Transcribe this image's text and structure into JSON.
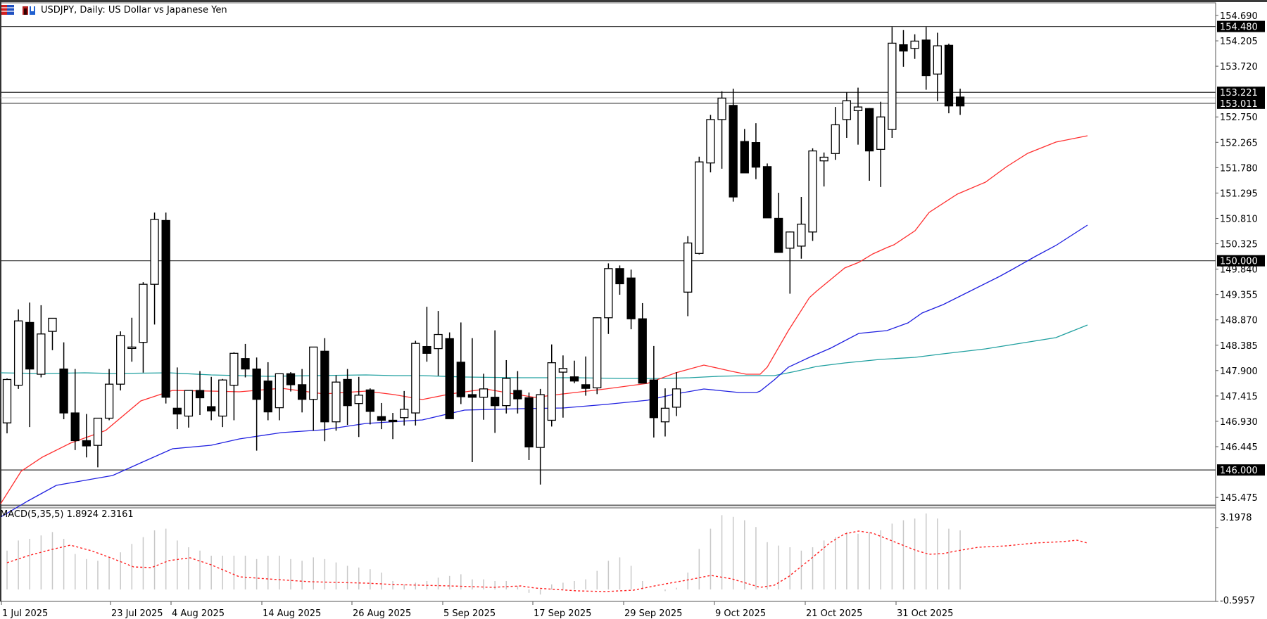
{
  "window": {
    "title": "USDJPY, Daily:  US Dollar vs Japanese Yen"
  },
  "chart_data": [
    {
      "type": "candlestick",
      "title": "USDJPY, Daily:  US Dollar vs Japanese Yen",
      "symbol": "USDJPY",
      "timeframe": "Daily",
      "y_axis_ticks": [
        154.69,
        154.205,
        153.72,
        152.75,
        152.265,
        151.78,
        151.295,
        150.81,
        150.325,
        149.84,
        149.355,
        148.87,
        148.385,
        147.9,
        147.415,
        146.93,
        146.445,
        145.475
      ],
      "ylim": [
        145.2,
        154.95
      ],
      "x_axis_labels": [
        "1 Jul 2025",
        "23 Jul 2025",
        "4 Aug 2025",
        "14 Aug 2025",
        "26 Aug 2025",
        "5 Sep 2025",
        "17 Sep 2025",
        "29 Sep 2025",
        "9 Oct 2025",
        "21 Oct 2025",
        "31 Oct 2025"
      ],
      "horizontal_levels": [
        {
          "price": 154.48,
          "label": "154.480"
        },
        {
          "price": 153.221,
          "label": "153.221"
        },
        {
          "price": 153.011,
          "label": "153.011"
        },
        {
          "price": 150.0,
          "label": "150.000"
        },
        {
          "price": 146.0,
          "label": "146.000"
        }
      ],
      "candles": [
        {
          "o": 146.9,
          "h": 147.75,
          "l": 146.7,
          "c": 147.73
        },
        {
          "o": 147.62,
          "h": 149.07,
          "l": 147.55,
          "c": 148.85
        },
        {
          "o": 148.82,
          "h": 149.2,
          "l": 146.82,
          "c": 147.93
        },
        {
          "o": 147.83,
          "h": 149.15,
          "l": 147.77,
          "c": 148.6
        },
        {
          "o": 148.65,
          "h": 148.86,
          "l": 148.29,
          "c": 148.9
        },
        {
          "o": 147.93,
          "h": 148.44,
          "l": 146.97,
          "c": 147.09
        },
        {
          "o": 147.09,
          "h": 147.93,
          "l": 146.38,
          "c": 146.56
        },
        {
          "o": 146.56,
          "h": 147.07,
          "l": 146.24,
          "c": 146.46
        },
        {
          "o": 146.47,
          "h": 146.99,
          "l": 146.05,
          "c": 146.99
        },
        {
          "o": 146.99,
          "h": 147.93,
          "l": 146.95,
          "c": 147.64
        },
        {
          "o": 147.64,
          "h": 148.65,
          "l": 147.52,
          "c": 148.57
        },
        {
          "o": 148.35,
          "h": 148.91,
          "l": 148.07,
          "c": 148.35
        },
        {
          "o": 148.44,
          "h": 149.59,
          "l": 147.86,
          "c": 149.55
        },
        {
          "o": 149.55,
          "h": 150.92,
          "l": 148.78,
          "c": 150.79
        },
        {
          "o": 150.77,
          "h": 150.92,
          "l": 147.27,
          "c": 147.39
        },
        {
          "o": 147.18,
          "h": 147.96,
          "l": 146.78,
          "c": 147.07
        },
        {
          "o": 147.03,
          "h": 147.52,
          "l": 146.81,
          "c": 147.52
        },
        {
          "o": 147.52,
          "h": 147.89,
          "l": 147.05,
          "c": 147.38
        },
        {
          "o": 147.21,
          "h": 147.78,
          "l": 146.95,
          "c": 147.13
        },
        {
          "o": 147.03,
          "h": 147.74,
          "l": 146.82,
          "c": 147.72
        },
        {
          "o": 147.62,
          "h": 148.25,
          "l": 146.95,
          "c": 148.23
        },
        {
          "o": 148.13,
          "h": 148.41,
          "l": 147.77,
          "c": 147.93
        },
        {
          "o": 147.93,
          "h": 148.15,
          "l": 146.37,
          "c": 147.35
        },
        {
          "o": 147.7,
          "h": 148.06,
          "l": 146.95,
          "c": 147.11
        },
        {
          "o": 147.19,
          "h": 147.84,
          "l": 146.95,
          "c": 147.84
        },
        {
          "o": 147.84,
          "h": 147.87,
          "l": 147.5,
          "c": 147.63
        },
        {
          "o": 147.63,
          "h": 147.93,
          "l": 147.1,
          "c": 147.35
        },
        {
          "o": 147.35,
          "h": 148.35,
          "l": 146.75,
          "c": 148.35
        },
        {
          "o": 148.27,
          "h": 148.52,
          "l": 146.55,
          "c": 146.92
        },
        {
          "o": 146.92,
          "h": 147.81,
          "l": 146.75,
          "c": 147.68
        },
        {
          "o": 147.73,
          "h": 147.93,
          "l": 146.86,
          "c": 147.23
        },
        {
          "o": 147.27,
          "h": 147.78,
          "l": 146.63,
          "c": 147.43
        },
        {
          "o": 147.53,
          "h": 147.56,
          "l": 146.87,
          "c": 147.12
        },
        {
          "o": 147.02,
          "h": 147.28,
          "l": 146.78,
          "c": 146.95
        },
        {
          "o": 146.95,
          "h": 147.09,
          "l": 146.59,
          "c": 146.93
        },
        {
          "o": 147.0,
          "h": 147.51,
          "l": 146.85,
          "c": 147.16
        },
        {
          "o": 147.09,
          "h": 148.47,
          "l": 146.85,
          "c": 148.42
        },
        {
          "o": 148.36,
          "h": 149.12,
          "l": 148.07,
          "c": 148.23
        },
        {
          "o": 148.32,
          "h": 149.04,
          "l": 147.8,
          "c": 148.59
        },
        {
          "o": 148.51,
          "h": 148.63,
          "l": 146.98,
          "c": 146.98
        },
        {
          "o": 148.06,
          "h": 148.82,
          "l": 147.26,
          "c": 147.4
        },
        {
          "o": 147.44,
          "h": 148.52,
          "l": 146.15,
          "c": 147.39
        },
        {
          "o": 147.39,
          "h": 147.84,
          "l": 146.96,
          "c": 147.55
        },
        {
          "o": 147.39,
          "h": 148.67,
          "l": 146.71,
          "c": 147.23
        },
        {
          "o": 147.23,
          "h": 148.1,
          "l": 147.08,
          "c": 147.75
        },
        {
          "o": 147.52,
          "h": 147.89,
          "l": 147.08,
          "c": 147.36
        },
        {
          "o": 147.38,
          "h": 147.48,
          "l": 146.19,
          "c": 146.44
        },
        {
          "o": 146.43,
          "h": 147.55,
          "l": 145.72,
          "c": 147.44
        },
        {
          "o": 146.95,
          "h": 148.4,
          "l": 146.83,
          "c": 148.05
        },
        {
          "o": 147.87,
          "h": 148.19,
          "l": 147.0,
          "c": 147.94
        },
        {
          "o": 147.78,
          "h": 148.09,
          "l": 147.66,
          "c": 147.7
        },
        {
          "o": 147.63,
          "h": 148.17,
          "l": 147.42,
          "c": 147.56
        },
        {
          "o": 147.57,
          "h": 148.92,
          "l": 147.45,
          "c": 148.91
        },
        {
          "o": 148.91,
          "h": 149.95,
          "l": 148.6,
          "c": 149.85
        },
        {
          "o": 149.85,
          "h": 149.91,
          "l": 149.35,
          "c": 149.56
        },
        {
          "o": 149.67,
          "h": 149.83,
          "l": 148.69,
          "c": 148.89
        },
        {
          "o": 148.89,
          "h": 149.19,
          "l": 147.66,
          "c": 147.66
        },
        {
          "o": 147.72,
          "h": 148.37,
          "l": 146.62,
          "c": 147.0
        },
        {
          "o": 146.92,
          "h": 147.56,
          "l": 146.64,
          "c": 147.18
        },
        {
          "o": 147.2,
          "h": 147.87,
          "l": 147.03,
          "c": 147.55
        },
        {
          "o": 149.4,
          "h": 150.47,
          "l": 148.94,
          "c": 150.34
        },
        {
          "o": 150.14,
          "h": 151.99,
          "l": 150.12,
          "c": 151.89
        },
        {
          "o": 151.87,
          "h": 152.79,
          "l": 151.69,
          "c": 152.7
        },
        {
          "o": 152.7,
          "h": 153.24,
          "l": 151.76,
          "c": 153.11
        },
        {
          "o": 152.97,
          "h": 153.29,
          "l": 151.13,
          "c": 151.22
        },
        {
          "o": 152.28,
          "h": 152.52,
          "l": 151.77,
          "c": 151.68
        },
        {
          "o": 152.26,
          "h": 152.63,
          "l": 151.56,
          "c": 151.79
        },
        {
          "o": 151.8,
          "h": 151.86,
          "l": 150.84,
          "c": 150.82
        },
        {
          "o": 150.81,
          "h": 151.3,
          "l": 150.16,
          "c": 150.16
        },
        {
          "o": 150.24,
          "h": 150.56,
          "l": 149.37,
          "c": 150.55
        },
        {
          "o": 150.28,
          "h": 151.22,
          "l": 150.04,
          "c": 150.7
        },
        {
          "o": 150.55,
          "h": 152.15,
          "l": 150.38,
          "c": 152.1
        },
        {
          "o": 151.91,
          "h": 152.07,
          "l": 151.42,
          "c": 151.98
        },
        {
          "o": 152.05,
          "h": 152.94,
          "l": 151.93,
          "c": 152.6
        },
        {
          "o": 152.7,
          "h": 153.22,
          "l": 152.35,
          "c": 153.06
        },
        {
          "o": 152.87,
          "h": 153.31,
          "l": 152.22,
          "c": 152.94
        },
        {
          "o": 152.91,
          "h": 152.92,
          "l": 151.53,
          "c": 152.1
        },
        {
          "o": 152.13,
          "h": 153.04,
          "l": 151.41,
          "c": 152.75
        },
        {
          "o": 152.51,
          "h": 154.47,
          "l": 152.35,
          "c": 154.16
        },
        {
          "o": 154.13,
          "h": 154.41,
          "l": 153.71,
          "c": 154.01
        },
        {
          "o": 154.06,
          "h": 154.33,
          "l": 153.86,
          "c": 154.2
        },
        {
          "o": 154.22,
          "h": 154.47,
          "l": 153.27,
          "c": 153.54
        },
        {
          "o": 153.57,
          "h": 154.36,
          "l": 153.05,
          "c": 154.11
        },
        {
          "o": 154.12,
          "h": 154.15,
          "l": 152.82,
          "c": 152.96
        },
        {
          "o": 153.13,
          "h": 153.29,
          "l": 152.79,
          "c": 152.96
        }
      ],
      "moving_averages": [
        {
          "name": "MA short",
          "color": "#ff3030"
        },
        {
          "name": "MA medium",
          "color": "#2020e0"
        },
        {
          "name": "MA long",
          "color": "#20a0a0"
        }
      ]
    },
    {
      "type": "bar+line",
      "title": "MACD(5,35,5) 1.8924 2.3161",
      "indicator": "MACD",
      "params": "5,35,5",
      "macd_value": 1.8924,
      "signal_value": 2.3161,
      "y_axis_ticks": [
        3.1978,
        -0.5957
      ],
      "ylim": [
        -0.5957,
        3.1978
      ],
      "histogram_color": "#c8c8c8",
      "signal_color": "#ff2020"
    }
  ],
  "axes": {
    "price_ticks": [
      "154.690",
      "154.205",
      "153.720",
      "152.750",
      "152.265",
      "151.780",
      "151.295",
      "150.810",
      "150.325",
      "149.840",
      "149.355",
      "148.870",
      "148.385",
      "147.900",
      "147.415",
      "146.930",
      "146.445",
      "145.475"
    ],
    "level_labels": [
      "154.480",
      "153.221",
      "153.011",
      "150.000",
      "146.000"
    ],
    "macd_ticks": [
      "3.1978",
      "-0.5957"
    ],
    "date_labels": [
      "1 Jul 2025",
      "23 Jul 2025",
      "4 Aug 2025",
      "14 Aug 2025",
      "26 Aug 2025",
      "5 Sep 2025",
      "17 Sep 2025",
      "29 Sep 2025",
      "9 Oct 2025",
      "21 Oct 2025",
      "31 Oct 2025"
    ]
  },
  "macd": {
    "label": "MACD(5,35,5) 1.8924 2.3161"
  }
}
